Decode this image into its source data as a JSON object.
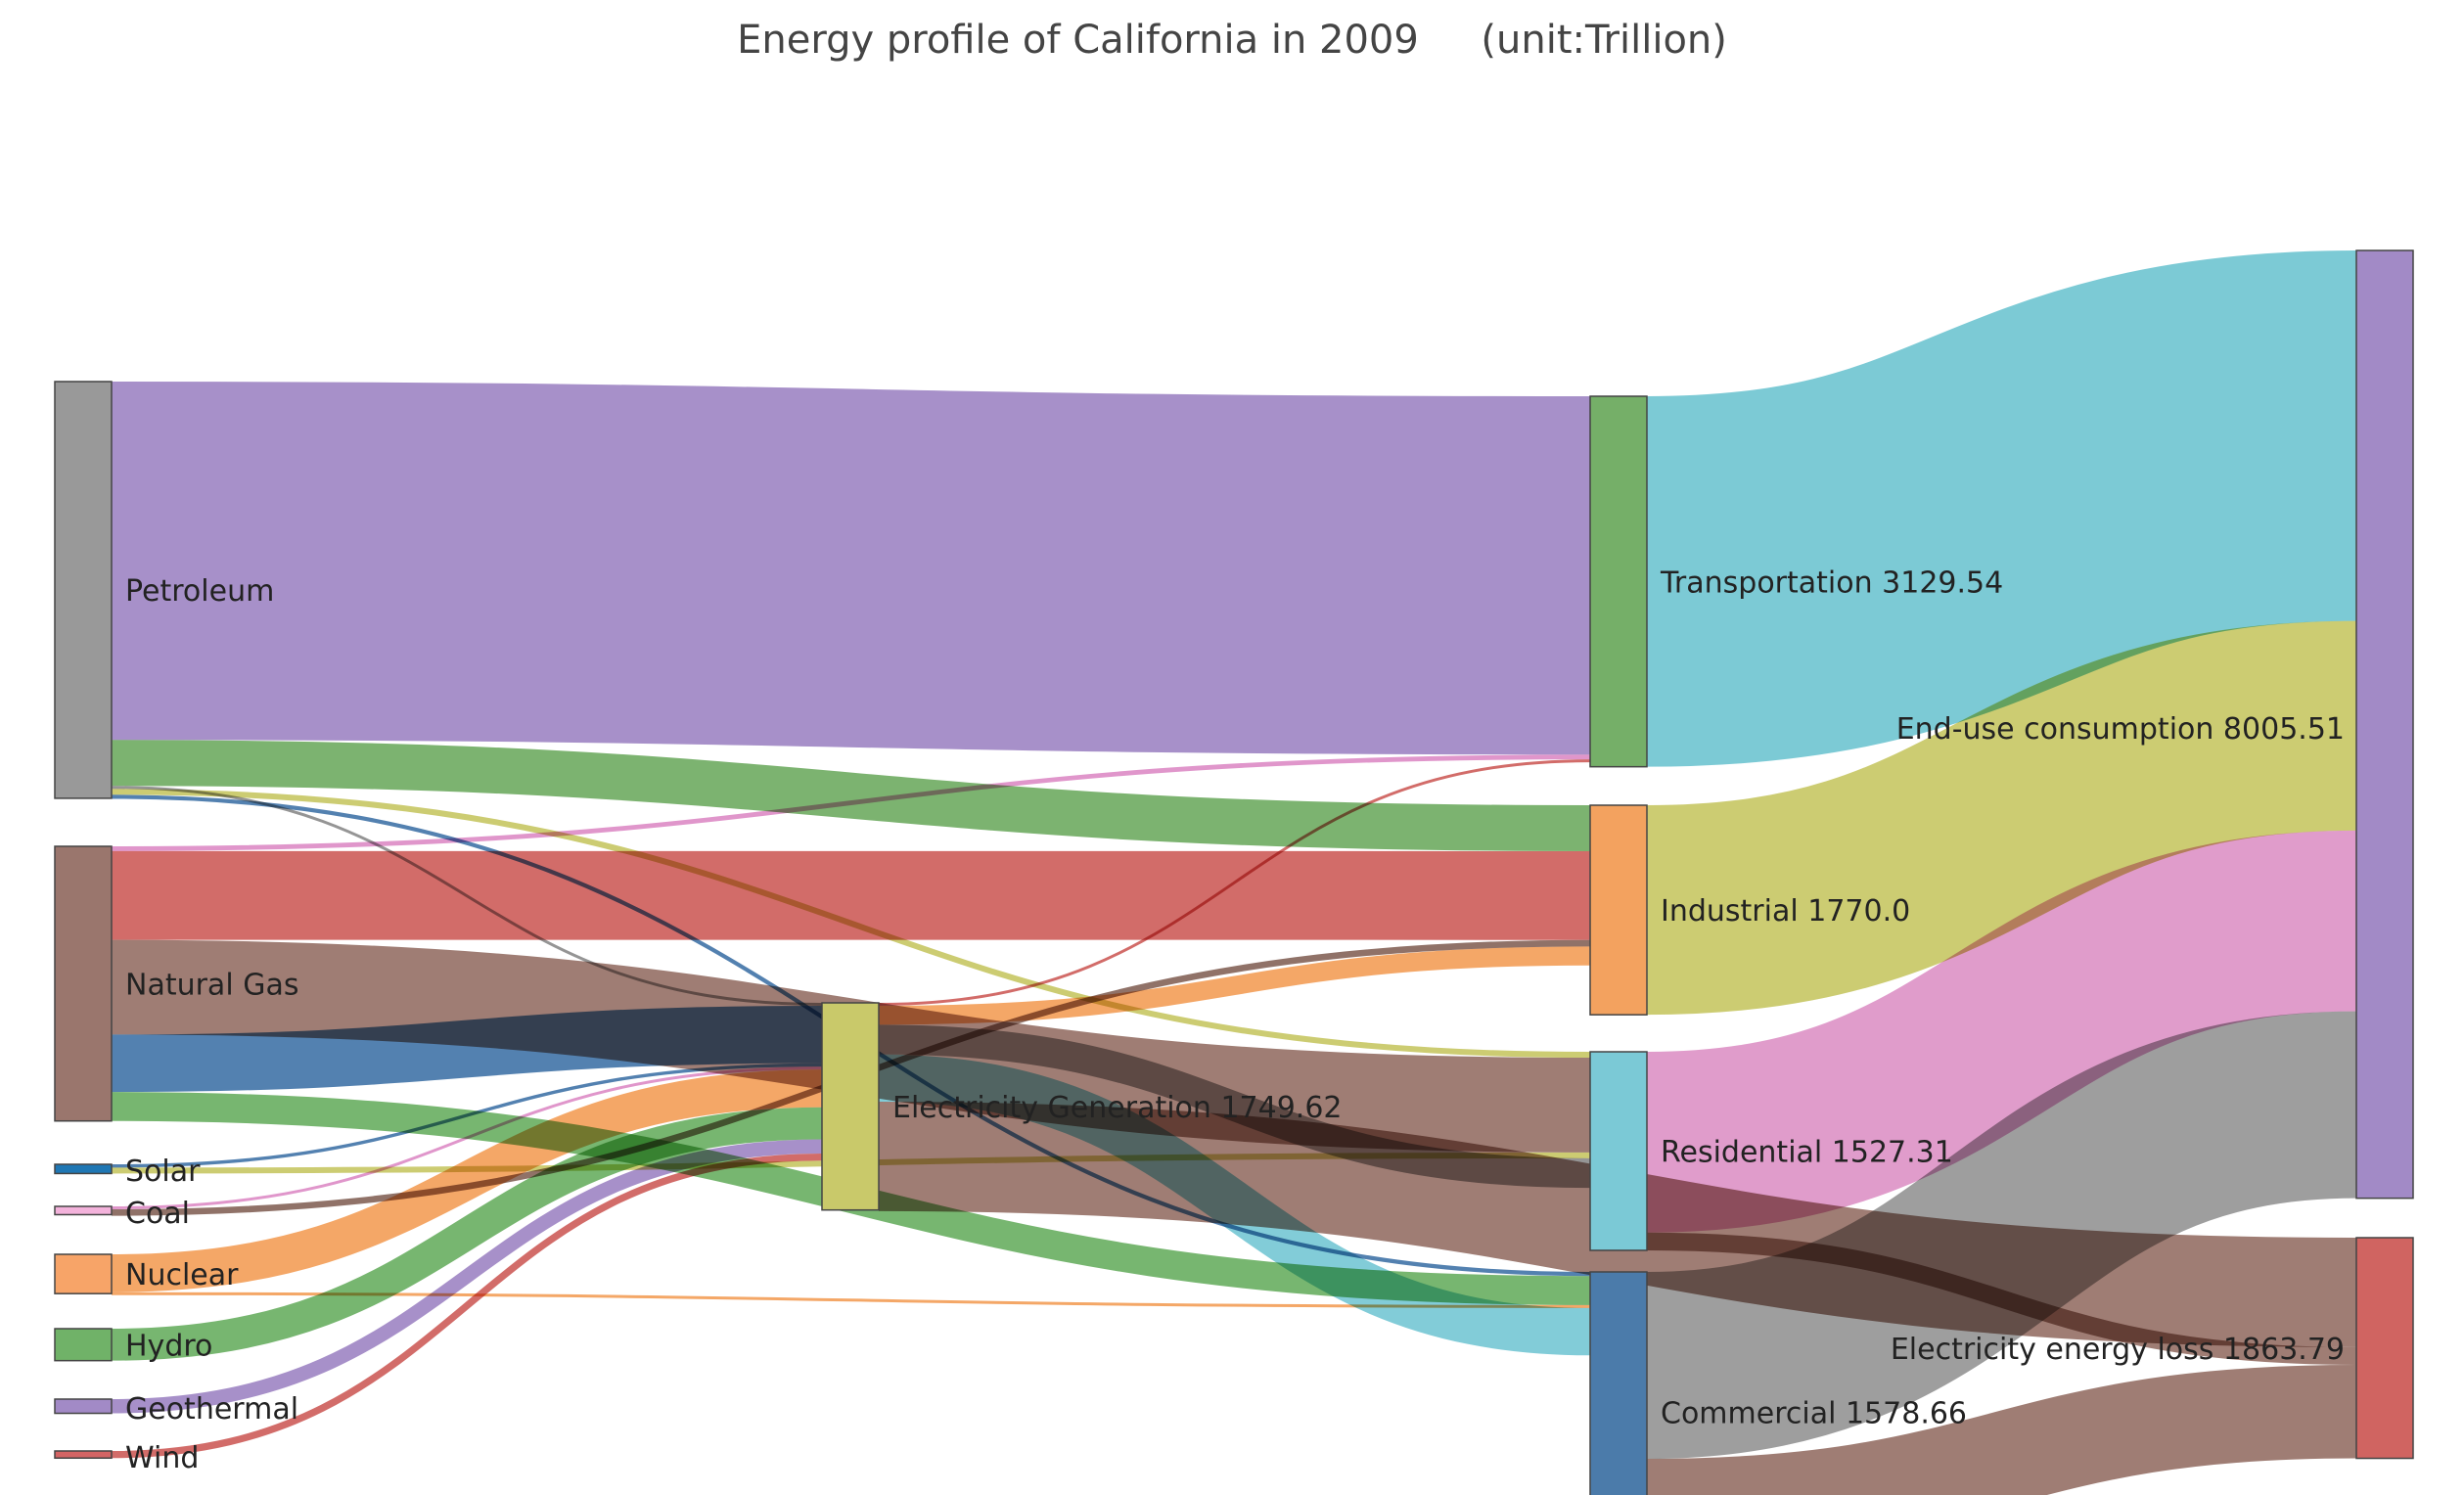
{
  "chart_data": {
    "type": "sankey",
    "title": "Energy profile of California in 2009     (unit:Trillion)",
    "nodes": [
      {
        "id": "petroleum",
        "label": "Petroleum",
        "color": "#999999"
      },
      {
        "id": "natural_gas",
        "label": "Natural Gas",
        "color": "#9a766d"
      },
      {
        "id": "solar",
        "label": "Solar",
        "color": "#1f77b4"
      },
      {
        "id": "coal",
        "label": "Coal",
        "color": "#f3b2db"
      },
      {
        "id": "nuclear",
        "label": "Nuclear",
        "color": "#f7a468"
      },
      {
        "id": "hydro",
        "label": "Hydro",
        "color": "#70b268"
      },
      {
        "id": "geothermal",
        "label": "Geothermal",
        "color": "#a28ac6"
      },
      {
        "id": "wind",
        "label": "Wind",
        "color": "#d36464"
      },
      {
        "id": "electricity_generation",
        "label": "Electricity Generation 1749.62",
        "color": "#c9c96a"
      },
      {
        "id": "transportation",
        "label": "Transportation 3129.54",
        "color": "#75af68"
      },
      {
        "id": "industrial",
        "label": "Industrial 1770.0",
        "color": "#f3a25f"
      },
      {
        "id": "residential",
        "label": "Residential 1527.31",
        "color": "#7bc9d6"
      },
      {
        "id": "commercial",
        "label": "Commercial 1578.66",
        "color": "#4b7baa"
      },
      {
        "id": "end_use",
        "label": "End-use consumption 8005.51",
        "color": "#a28ac6"
      },
      {
        "id": "loss",
        "label": "Electricity energy loss 1863.79",
        "color": "#d06461"
      }
    ],
    "links": [
      {
        "source": "petroleum",
        "target": "transportation",
        "value": 3027,
        "color": "#a28ac6"
      },
      {
        "source": "petroleum",
        "target": "industrial",
        "value": 388,
        "color": "#75af68"
      },
      {
        "source": "petroleum",
        "target": "electricity_generation",
        "value": 20,
        "color": "#8f8f8f"
      },
      {
        "source": "petroleum",
        "target": "residential",
        "value": 50,
        "color": "#c9c96a"
      },
      {
        "source": "petroleum",
        "target": "commercial",
        "value": 35,
        "color": "#4a7aac"
      },
      {
        "source": "natural_gas",
        "target": "transportation",
        "value": 40,
        "color": "#de90c8"
      },
      {
        "source": "natural_gas",
        "target": "industrial",
        "value": 750,
        "color": "#d06461"
      },
      {
        "source": "natural_gas",
        "target": "residential",
        "value": 800,
        "color": "#9a766d"
      },
      {
        "source": "natural_gas",
        "target": "electricity_generation",
        "value": 485,
        "color": "#4a7aac"
      },
      {
        "source": "natural_gas",
        "target": "commercial",
        "value": 245,
        "color": "#70b268"
      },
      {
        "source": "solar",
        "target": "electricity_generation",
        "value": 28,
        "color": "#4a7aac"
      },
      {
        "source": "solar",
        "target": "residential",
        "value": 50,
        "color": "#c9c96a"
      },
      {
        "source": "coal",
        "target": "electricity_generation",
        "value": 15,
        "color": "#de90c8"
      },
      {
        "source": "coal",
        "target": "industrial",
        "value": 55,
        "color": "#8a6a60"
      },
      {
        "source": "nuclear",
        "target": "electricity_generation",
        "value": 320,
        "color": "#f3a25f"
      },
      {
        "source": "nuclear",
        "target": "commercial",
        "value": 12,
        "color": "#f3a25f"
      },
      {
        "source": "hydro",
        "target": "electricity_generation",
        "value": 270,
        "color": "#70b268"
      },
      {
        "source": "geothermal",
        "target": "electricity_generation",
        "value": 120,
        "color": "#a28ac6"
      },
      {
        "source": "wind",
        "target": "electricity_generation",
        "value": 60,
        "color": "#d06461"
      },
      {
        "source": "electricity_generation",
        "target": "transportation",
        "value": 15,
        "color": "#d06461"
      },
      {
        "source": "electricity_generation",
        "target": "industrial",
        "value": 160,
        "color": "#f3a25f"
      },
      {
        "source": "electricity_generation",
        "target": "residential",
        "value": 250,
        "color": "#8f8f8f"
      },
      {
        "source": "electricity_generation",
        "target": "commercial",
        "value": 400,
        "color": "#7bc9d6"
      },
      {
        "source": "electricity_generation",
        "target": "loss",
        "value": 924.62,
        "color": "#9a766d"
      },
      {
        "source": "transportation",
        "target": "end_use",
        "value": 3129.54,
        "color": "#75c7d3"
      },
      {
        "source": "industrial",
        "target": "end_use",
        "value": 1770.0,
        "color": "#c9c96a"
      },
      {
        "source": "residential",
        "target": "end_use",
        "value": 1527.31,
        "color": "#de97c8"
      },
      {
        "source": "commercial",
        "target": "end_use",
        "value": 1578.66,
        "color": "#999999"
      },
      {
        "source": "residential",
        "target": "loss",
        "value": 150,
        "color": "#9a766d"
      },
      {
        "source": "commercial",
        "target": "loss",
        "value": 789.17,
        "color": "#9a766d"
      }
    ]
  }
}
